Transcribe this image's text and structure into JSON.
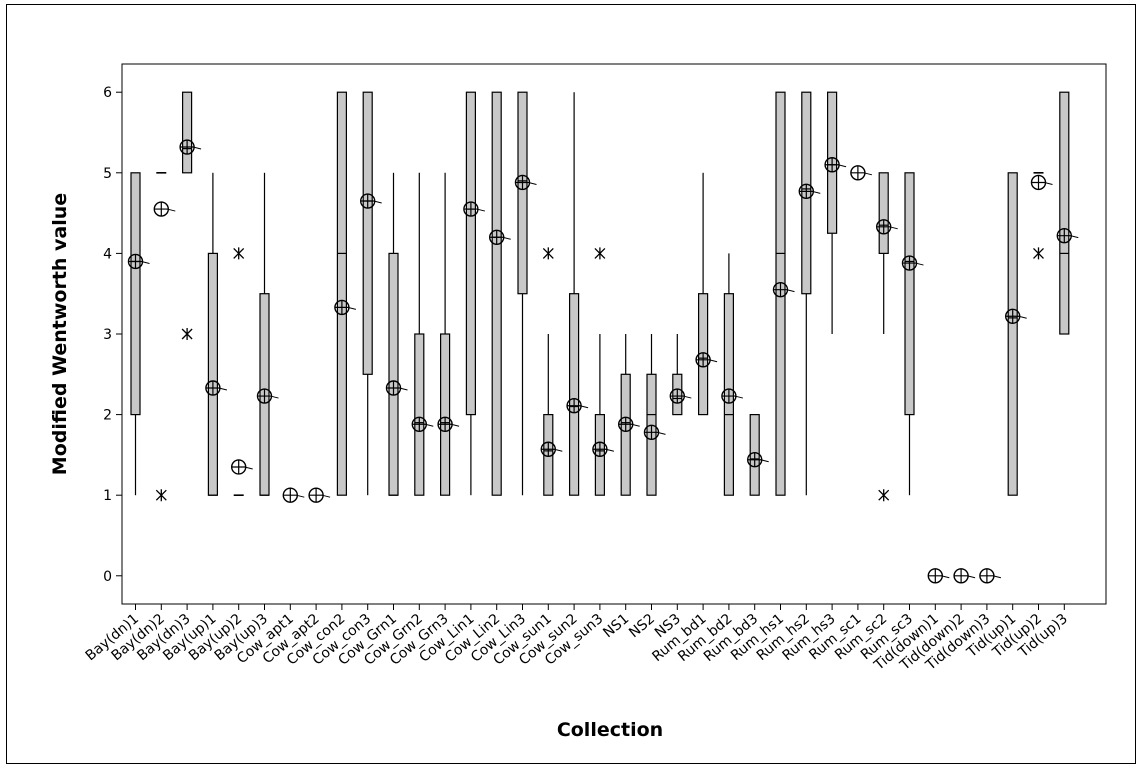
{
  "chart_data": {
    "type": "boxplot",
    "title": "",
    "xlabel": "Collection",
    "ylabel": "Modified Wentworth value",
    "ylim": [
      -0.35,
      6.35
    ],
    "yticks": [
      0,
      1,
      2,
      3,
      4,
      5,
      6
    ],
    "grid": false,
    "legend": "none",
    "colors": {
      "box_fill": "#c8c8c8",
      "stroke": "#000000"
    },
    "categories": [
      "Bay(dn)1",
      "Bay(dn)2",
      "Bay(dn)3",
      "Bay(up)1",
      "Bay(up)2",
      "Bay(up)3",
      "Cow_apt1",
      "Cow_apt2",
      "Cow_con2",
      "Cow_con3",
      "Cow_Grn1",
      "Cow_Grn2",
      "Cow_Grn3",
      "Cow_Lin1",
      "Cow_Lin2",
      "Cow_Lin3",
      "Cow_sun1",
      "Cow_sun2",
      "Cow_sun3",
      "NS1",
      "NS2",
      "NS3",
      "Rum_bd1",
      "Rum_bd2",
      "Rum_bd3",
      "Rum_hs1",
      "Rum_hs2",
      "Rum_hs3",
      "Rum_sc1",
      "Rum_sc2",
      "Rum_sc3",
      "Tid(down)1",
      "Tid(down)2",
      "Tid(down)3",
      "Tid(up)1",
      "Tid(up)2",
      "Tid(up)3"
    ],
    "boxes": [
      {
        "wlo": 1,
        "q1": 2,
        "med": 3.9,
        "q3": 5,
        "whi": 5,
        "mean": 3.9,
        "outliers": []
      },
      {
        "wlo": 4.55,
        "q1": 4.55,
        "med": 4.55,
        "q3": 4.55,
        "whi": 4.55,
        "mean": 4.55,
        "outliers": [
          1
        ],
        "caps": [
          5
        ]
      },
      {
        "wlo": 5,
        "q1": 5,
        "med": 5.3,
        "q3": 6,
        "whi": 6,
        "mean": 5.32,
        "outliers": [
          3
        ]
      },
      {
        "wlo": 1,
        "q1": 1,
        "med": 1,
        "q3": 4,
        "whi": 5,
        "mean": 2.33,
        "outliers": []
      },
      {
        "wlo": 1.35,
        "q1": 1.35,
        "med": 1.35,
        "q3": 1.35,
        "whi": 1.35,
        "mean": 1.35,
        "outliers": [
          4
        ],
        "caps": [
          1
        ]
      },
      {
        "wlo": 1,
        "q1": 1,
        "med": 1,
        "q3": 3.5,
        "whi": 5,
        "mean": 2.23,
        "outliers": []
      },
      {
        "wlo": 1,
        "q1": 1,
        "med": 1,
        "q3": 1,
        "whi": 1,
        "mean": 1,
        "outliers": []
      },
      {
        "wlo": 1,
        "q1": 1,
        "med": 1,
        "q3": 1,
        "whi": 1,
        "mean": 1,
        "outliers": []
      },
      {
        "wlo": 1,
        "q1": 1,
        "med": 4,
        "q3": 6,
        "whi": 6,
        "mean": 3.33,
        "outliers": []
      },
      {
        "wlo": 1,
        "q1": 2.5,
        "med": 4.65,
        "q3": 6,
        "whi": 6,
        "mean": 4.65,
        "outliers": []
      },
      {
        "wlo": 1,
        "q1": 1,
        "med": 1,
        "q3": 4,
        "whi": 5,
        "mean": 2.33,
        "outliers": []
      },
      {
        "wlo": 1,
        "q1": 1,
        "med": 1.9,
        "q3": 3,
        "whi": 5,
        "mean": 1.88,
        "outliers": []
      },
      {
        "wlo": 1,
        "q1": 1,
        "med": 1.9,
        "q3": 3,
        "whi": 5,
        "mean": 1.88,
        "outliers": []
      },
      {
        "wlo": 1,
        "q1": 2,
        "med": 4.55,
        "q3": 6,
        "whi": 6,
        "mean": 4.55,
        "outliers": []
      },
      {
        "wlo": 1,
        "q1": 1,
        "med": 4.2,
        "q3": 6,
        "whi": 6,
        "mean": 4.2,
        "outliers": []
      },
      {
        "wlo": 1,
        "q1": 3.5,
        "med": 4.9,
        "q3": 6,
        "whi": 6,
        "mean": 4.88,
        "outliers": []
      },
      {
        "wlo": 1,
        "q1": 1,
        "med": 1.55,
        "q3": 2,
        "whi": 3,
        "mean": 1.57,
        "outliers": [
          4
        ]
      },
      {
        "wlo": 1,
        "q1": 1,
        "med": 2.1,
        "q3": 3.5,
        "whi": 6,
        "mean": 2.11,
        "outliers": []
      },
      {
        "wlo": 1,
        "q1": 1,
        "med": 1.55,
        "q3": 2,
        "whi": 3,
        "mean": 1.57,
        "outliers": [
          4
        ]
      },
      {
        "wlo": 1,
        "q1": 1,
        "med": 1.9,
        "q3": 2.5,
        "whi": 3,
        "mean": 1.88,
        "outliers": []
      },
      {
        "wlo": 1,
        "q1": 1,
        "med": 2,
        "q3": 2.5,
        "whi": 3,
        "mean": 1.78,
        "outliers": []
      },
      {
        "wlo": 2,
        "q1": 2,
        "med": 2.2,
        "q3": 2.5,
        "whi": 3,
        "mean": 2.23,
        "outliers": []
      },
      {
        "wlo": 2,
        "q1": 2,
        "med": 2.7,
        "q3": 3.5,
        "whi": 5,
        "mean": 2.68,
        "outliers": []
      },
      {
        "wlo": 1,
        "q1": 1,
        "med": 2,
        "q3": 3.5,
        "whi": 4,
        "mean": 2.23,
        "outliers": []
      },
      {
        "wlo": 1,
        "q1": 1,
        "med": 1.45,
        "q3": 2,
        "whi": 2,
        "mean": 1.44,
        "outliers": []
      },
      {
        "wlo": 1,
        "q1": 1,
        "med": 4,
        "q3": 6,
        "whi": 6,
        "mean": 3.55,
        "outliers": []
      },
      {
        "wlo": 1,
        "q1": 3.5,
        "med": 4.8,
        "q3": 6,
        "whi": 6,
        "mean": 4.77,
        "outliers": []
      },
      {
        "wlo": 3,
        "q1": 4.25,
        "med": 5.1,
        "q3": 6,
        "whi": 6,
        "mean": 5.1,
        "outliers": []
      },
      {
        "wlo": 5,
        "q1": 5,
        "med": 5,
        "q3": 5,
        "whi": 5,
        "mean": 5,
        "outliers": []
      },
      {
        "wlo": 3,
        "q1": 4,
        "med": 4.35,
        "q3": 5,
        "whi": 5,
        "mean": 4.33,
        "outliers": [
          1
        ]
      },
      {
        "wlo": 1,
        "q1": 2,
        "med": 3.9,
        "q3": 5,
        "whi": 5,
        "mean": 3.88,
        "outliers": []
      },
      {
        "wlo": 0,
        "q1": 0,
        "med": 0,
        "q3": 0,
        "whi": 0,
        "mean": 0,
        "outliers": []
      },
      {
        "wlo": 0,
        "q1": 0,
        "med": 0,
        "q3": 0,
        "whi": 0,
        "mean": 0,
        "outliers": []
      },
      {
        "wlo": 0,
        "q1": 0,
        "med": 0,
        "q3": 0,
        "whi": 0,
        "mean": 0,
        "outliers": []
      },
      {
        "wlo": 1,
        "q1": 1,
        "med": 3.2,
        "q3": 5,
        "whi": 5,
        "mean": 3.22,
        "outliers": []
      },
      {
        "wlo": 4.88,
        "q1": 4.88,
        "med": 4.88,
        "q3": 4.88,
        "whi": 4.88,
        "mean": 4.88,
        "outliers": [
          4
        ],
        "caps": [
          5
        ]
      },
      {
        "wlo": 3,
        "q1": 3,
        "med": 4,
        "q3": 6,
        "whi": 6,
        "mean": 4.22,
        "outliers": []
      }
    ]
  }
}
